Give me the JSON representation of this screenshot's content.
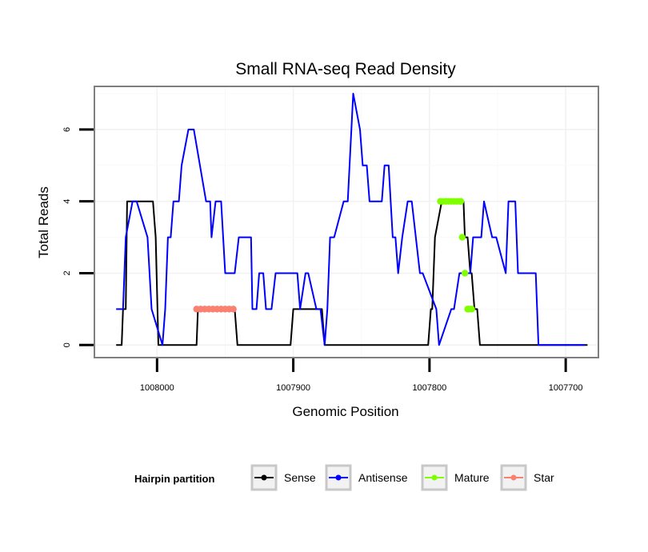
{
  "chart_data": {
    "type": "line",
    "title": "Small RNA-seq Read Density",
    "xlabel": "Genomic Position",
    "ylabel": "Total Reads",
    "x_reversed": true,
    "xlim": [
      1008046,
      1007676
    ],
    "ylim": [
      -0.35,
      7.2
    ],
    "x_ticks": [
      1008000,
      1007900,
      1007800,
      1007700
    ],
    "x_tick_labels": [
      "1008000",
      "1007900",
      "1007800",
      "1007700"
    ],
    "y_ticks": [
      0,
      2,
      4,
      6
    ],
    "y_tick_labels": [
      "0",
      "2",
      "4",
      "6"
    ],
    "grid": true,
    "legend": {
      "title": "Hairpin partition",
      "position": "bottom",
      "entries": [
        {
          "label": "Sense",
          "color": "#000000"
        },
        {
          "label": "Antisense",
          "color": "#0000ff"
        },
        {
          "label": "Mature",
          "color": "#7fff00"
        },
        {
          "label": "Star",
          "color": "#fa8072"
        }
      ]
    },
    "series": [
      {
        "name": "Sense",
        "style": "line",
        "color": "#000000",
        "x": [
          1008030,
          1008026,
          1008025,
          1008023,
          1008022,
          1008003,
          1008001,
          1007999,
          1007971,
          1007970,
          1007943,
          1007941,
          1007902,
          1007900,
          1007879,
          1007877,
          1007801,
          1007799,
          1007798,
          1007796,
          1007791,
          1007789,
          1007775,
          1007774,
          1007772,
          1007770,
          1007769,
          1007767,
          1007765,
          1007763,
          1007755,
          1007693,
          1007684
        ],
        "y": [
          0,
          0,
          1,
          1,
          4,
          4,
          3,
          0,
          0,
          1,
          1,
          0,
          0,
          1,
          1,
          0,
          0,
          1,
          1,
          3,
          4,
          4,
          4,
          3,
          3,
          2,
          2,
          1,
          1,
          0,
          0,
          0,
          0
        ]
      },
      {
        "name": "Antisense",
        "style": "line",
        "color": "#0000ff",
        "x": [
          1008030,
          1008025,
          1008023,
          1008018,
          1008015,
          1008007,
          1008004,
          1007996,
          1007994,
          1007992,
          1007990,
          1007988,
          1007984,
          1007982,
          1007977,
          1007976,
          1007974,
          1007973,
          1007964,
          1007961,
          1007960,
          1007957,
          1007956,
          1007953,
          1007950,
          1007943,
          1007940,
          1007931,
          1007930,
          1007927,
          1007925,
          1007922,
          1007920,
          1007916,
          1007913,
          1007911,
          1007909,
          1007897,
          1007895,
          1007891,
          1007889,
          1007883,
          1007880,
          1007877,
          1007875,
          1007873,
          1007870,
          1007863,
          1007860,
          1007856,
          1007851,
          1007849,
          1007848,
          1007846,
          1007844,
          1007835,
          1007833,
          1007832,
          1007830,
          1007827,
          1007825,
          1007823,
          1007820,
          1007816,
          1007813,
          1007810,
          1007807,
          1007805,
          1007795,
          1007793,
          1007784,
          1007782,
          1007778,
          1007770,
          1007768,
          1007762,
          1007760,
          1007754,
          1007751,
          1007744,
          1007742,
          1007740,
          1007738,
          1007737,
          1007735,
          1007726,
          1007725,
          1007722,
          1007720,
          1007711,
          1007710,
          1007694,
          1007692,
          1007686
        ],
        "y": [
          1,
          1,
          3,
          4,
          4,
          3,
          1,
          0,
          1,
          3,
          3,
          4,
          4,
          5,
          6,
          6,
          6,
          6,
          4,
          4,
          3,
          4,
          4,
          4,
          2,
          2,
          3,
          3,
          1,
          1,
          2,
          2,
          1,
          1,
          2,
          2,
          2,
          2,
          1,
          2,
          2,
          1,
          1,
          0,
          1,
          3,
          3,
          4,
          4,
          7,
          6,
          5,
          5,
          5,
          4,
          4,
          5,
          5,
          5,
          3,
          3,
          2,
          3,
          4,
          4,
          3,
          2,
          2,
          1,
          0,
          1,
          1,
          2,
          2,
          3,
          3,
          4,
          3,
          3,
          2,
          4,
          4,
          4,
          4,
          2,
          2,
          2,
          2,
          0,
          0,
          0,
          0,
          0,
          0
        ]
      },
      {
        "name": "Mature",
        "style": "dots",
        "color": "#7fff00",
        "x": [
          1007792,
          1007790,
          1007788,
          1007786,
          1007784,
          1007782,
          1007780,
          1007778,
          1007777,
          1007776,
          1007774,
          1007772,
          1007771,
          1007769
        ],
        "y": [
          4,
          4,
          4,
          4,
          4,
          4,
          4,
          4,
          4,
          3,
          2,
          1,
          1,
          1
        ]
      },
      {
        "name": "Star",
        "style": "dots",
        "color": "#fa8072",
        "x": [
          1007971,
          1007968,
          1007965,
          1007962,
          1007959,
          1007956,
          1007953,
          1007950,
          1007947,
          1007944
        ],
        "y": [
          1,
          1,
          1,
          1,
          1,
          1,
          1,
          1,
          1,
          1
        ]
      }
    ]
  }
}
